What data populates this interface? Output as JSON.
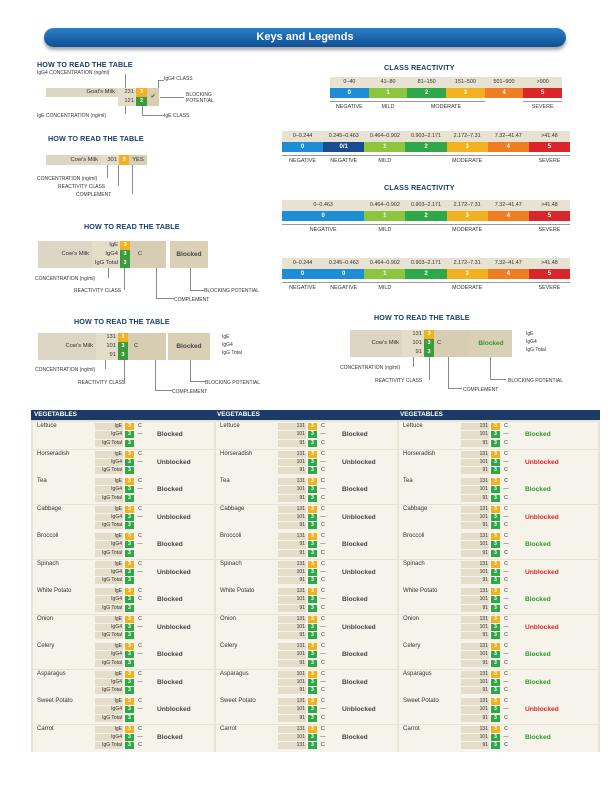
{
  "banner": "Keys and Legends",
  "how": "HOW TO READ THE TABLE",
  "cr_title": "CLASS REACTIVITY",
  "k1": {
    "food": "Goat's Milk",
    "v1": "231",
    "v2": "121",
    "c1": "3",
    "c2": "2",
    "check": "✔",
    "ann_ig4conc": "IgG4 CONCENTRATION (ng/ml)",
    "ann_ig4class": "IgG4 CLASS",
    "ann_block": "BLOCKING\nPOTENTIAL",
    "ann_igeconc": "IgE CONCENTRATION (ng/ml)",
    "ann_igeclass": "IgE CLASS"
  },
  "k2": {
    "food": "Cow's Milk",
    "v": "301",
    "c": "3",
    "comp": "YES",
    "a1": "CONCENTRATION (ng/ml)",
    "a2": "REACTIVITY CLASS",
    "a3": "COMPLEMENT"
  },
  "k3": {
    "food": "Cow's Milk",
    "l1": "IgE",
    "l2": "IgG4",
    "l3": "IgG Total",
    "c": "3",
    "comp": "C",
    "block": "Blocked",
    "a1": "CONCENTRATION (ng/ml)",
    "a2": "REACTIVITY CLASS",
    "a3": "COMPLEMENT",
    "a4": "BLOCKING POTENTIAL"
  },
  "k4": {
    "food": "Cow's Milk",
    "v1": "131",
    "v2": "101",
    "v3": "91",
    "c": "3",
    "comp": "C",
    "block": "Blocked",
    "l1": "IgE",
    "l2": "IgG4",
    "l3": "IgG Total",
    "a1": "CONCENTRATION (ng/ml)",
    "a2": "REACTIVITY CLASS",
    "a3": "COMPLEMENT",
    "a4": "BLOCKING POTENTIAL"
  },
  "k5": {
    "food": "Cow's Milk",
    "v1": "131",
    "v2": "101",
    "v3": "91",
    "c": "3",
    "comp": "C",
    "block": "Blocked",
    "l1": "IgE",
    "l2": "IgG4",
    "l3": "IgG Total",
    "a1": "CONCENTRATION (ng/ml)",
    "a2": "REACTIVITY CLASS",
    "a3": "COMPLEMENT",
    "a4": "BLOCKING POTENTIAL"
  },
  "scale1": {
    "ranges": [
      "0–40",
      "41–80",
      "81–150",
      "151–500",
      "501–900",
      ">900"
    ],
    "classes": [
      "0",
      "1",
      "2",
      "3",
      "4",
      "5"
    ],
    "labels": [
      "NEGATIVE",
      "MILD",
      "MODERATE",
      "SEVERE"
    ]
  },
  "scale2": {
    "ranges": [
      "0–0.244",
      "0.245–0.463",
      "0.464–0.902",
      "0.903–2.171",
      "2.172–7.31",
      "7.32–41.47",
      ">41.48"
    ],
    "classes": [
      "0",
      "0/1",
      "1",
      "2",
      "3",
      "4",
      "5"
    ],
    "labels": [
      "NEGATIVE",
      "NEGATIVE",
      "MILD",
      "MODERATE",
      "SEVERE"
    ]
  },
  "scale3": {
    "ranges": [
      "0–0.463",
      "0.464–0.902",
      "0.903–2.171",
      "2.172–7.31",
      "7.32–41.47",
      ">41.48"
    ],
    "classes": [
      "0",
      "1",
      "2",
      "3",
      "4",
      "5"
    ],
    "labels": [
      "NEGATIVE",
      "MILD",
      "MODERATE",
      "SEVERE"
    ]
  },
  "scale4": {
    "ranges": [
      "0–0.244",
      "0.245–0.463",
      "0.464–0.902",
      "0.903–2.171",
      "2.172–7.31",
      "7.32–41.47",
      ">41.48"
    ],
    "classes": [
      "0",
      "0",
      "1",
      "2",
      "3",
      "4",
      "5"
    ],
    "labels": [
      "NEGATIVE",
      "NEGATIVE",
      "MILD",
      "MODERATE",
      "SEVERE"
    ]
  },
  "colors": {
    "c0": "#1e8ed4",
    "c01": "#1a4d8f",
    "c1": "#8cc63f",
    "c2": "#2fa84a",
    "c3": "#f2b11e",
    "c4": "#ef7d22",
    "c5": "#d8262a"
  },
  "panels": [
    {
      "title": "VEGETABLES",
      "mode": "labels",
      "rows": [
        {
          "name": "Lettuce",
          "comp": [
            "C",
            "—",
            ""
          ],
          "status": "Blocked"
        },
        {
          "name": "Horseradish",
          "comp": [
            "C",
            "—",
            ""
          ],
          "status": "Unblocked"
        },
        {
          "name": "Tea",
          "comp": [
            "C",
            "—",
            ""
          ],
          "status": "Blocked"
        },
        {
          "name": "Cabbage",
          "comp": [
            "C",
            "—",
            ""
          ],
          "status": "Unblocked"
        },
        {
          "name": "Broccoli",
          "comp": [
            "C",
            "—",
            ""
          ],
          "status": "Blocked"
        },
        {
          "name": "Spinach",
          "comp": [
            "C",
            "—",
            ""
          ],
          "status": "Unblocked"
        },
        {
          "name": "White Potato",
          "comp": [
            "C",
            "C",
            ""
          ],
          "status": "Blocked"
        },
        {
          "name": "Onion",
          "comp": [
            "C",
            "—",
            ""
          ],
          "status": "Unblocked"
        },
        {
          "name": "Celery",
          "comp": [
            "C",
            "—",
            ""
          ],
          "status": "Blocked"
        },
        {
          "name": "Asparagus",
          "comp": [
            "C",
            "—",
            ""
          ],
          "status": "Blocked"
        },
        {
          "name": "Sweet Potato",
          "comp": [
            "C",
            "—",
            ""
          ],
          "status": "Unblocked"
        },
        {
          "name": "Carrot",
          "comp": [
            "C",
            "—",
            "C"
          ],
          "status": "Blocked"
        }
      ]
    },
    {
      "title": "VEGETABLES",
      "mode": "numbers",
      "rows": [
        {
          "name": "Lettuce",
          "vals": [
            "131",
            "101",
            "91"
          ],
          "comp": [
            "C",
            "—",
            "C"
          ],
          "status": "Blocked"
        },
        {
          "name": "Horseradish",
          "vals": [
            "131",
            "101",
            "91"
          ],
          "comp": [
            "C",
            "—",
            "C"
          ],
          "status": "Unblocked"
        },
        {
          "name": "Tea",
          "vals": [
            "131",
            "101",
            "91"
          ],
          "comp": [
            "C",
            "—",
            "C"
          ],
          "status": "Blocked"
        },
        {
          "name": "Cabbage",
          "vals": [
            "131",
            "101",
            "91"
          ],
          "comp": [
            "C",
            "—",
            "C"
          ],
          "status": "Unblocked"
        },
        {
          "name": "Broccoli",
          "vals": [
            "131",
            "91",
            "91"
          ],
          "comp": [
            "C",
            "—",
            "C"
          ],
          "status": "Blocked"
        },
        {
          "name": "Spinach",
          "vals": [
            "131",
            "101",
            "91"
          ],
          "comp": [
            "C",
            "—",
            "C"
          ],
          "status": "Unblocked"
        },
        {
          "name": "White Potato",
          "vals": [
            "131",
            "101",
            "91"
          ],
          "comp": [
            "C",
            "—",
            "C"
          ],
          "status": "Blocked"
        },
        {
          "name": "Onion",
          "vals": [
            "131",
            "101",
            "91"
          ],
          "comp": [
            "C",
            "—",
            "C"
          ],
          "status": "Unblocked"
        },
        {
          "name": "Celery",
          "vals": [
            "131",
            "101",
            "91"
          ],
          "comp": [
            "C",
            "—",
            "C"
          ],
          "status": "Blocked"
        },
        {
          "name": "Asparagus",
          "vals": [
            "101",
            "101",
            "91"
          ],
          "comp": [
            "C",
            "—",
            "C"
          ],
          "status": "Blocked"
        },
        {
          "name": "Sweet Potato",
          "vals": [
            "131",
            "101",
            "91"
          ],
          "comp": [
            "C",
            "—",
            "C"
          ],
          "status": "Unblocked"
        },
        {
          "name": "Carrot",
          "vals": [
            "131",
            "101",
            "131"
          ],
          "comp": [
            "C",
            "—",
            "C"
          ],
          "status": "Blocked"
        }
      ]
    },
    {
      "title": "VEGETABLES",
      "mode": "numbers",
      "rows": [
        {
          "name": "Lettuce",
          "vals": [
            "131",
            "101",
            "91"
          ],
          "comp": [
            "C",
            "—",
            "C"
          ],
          "status": "Blocked",
          "color": "g"
        },
        {
          "name": "Horseradish",
          "vals": [
            "131",
            "101",
            "91"
          ],
          "comp": [
            "C",
            "—",
            "C"
          ],
          "status": "Unblocked",
          "color": "r"
        },
        {
          "name": "Tea",
          "vals": [
            "131",
            "101",
            "91"
          ],
          "comp": [
            "C",
            "—",
            "C"
          ],
          "status": "Blocked",
          "color": "g"
        },
        {
          "name": "Cabbage",
          "vals": [
            "131",
            "101",
            "91"
          ],
          "comp": [
            "C",
            "—",
            "C"
          ],
          "status": "Unblocked",
          "color": "r"
        },
        {
          "name": "Broccoli",
          "vals": [
            "131",
            "101",
            "91"
          ],
          "comp": [
            "C",
            "—",
            "C"
          ],
          "status": "Blocked",
          "color": "g"
        },
        {
          "name": "Spinach",
          "vals": [
            "131",
            "101",
            "91"
          ],
          "comp": [
            "C",
            "—",
            "C"
          ],
          "status": "Unblocked",
          "color": "r"
        },
        {
          "name": "White Potato",
          "vals": [
            "131",
            "101",
            "91"
          ],
          "comp": [
            "C",
            "—",
            "C"
          ],
          "status": "Blocked",
          "color": "g"
        },
        {
          "name": "Onion",
          "vals": [
            "131",
            "101",
            "91"
          ],
          "comp": [
            "C",
            "—",
            "C"
          ],
          "status": "Unblocked",
          "color": "r"
        },
        {
          "name": "Celery",
          "vals": [
            "131",
            "101",
            "91"
          ],
          "comp": [
            "C",
            "—",
            "C"
          ],
          "status": "Blocked",
          "color": "g"
        },
        {
          "name": "Asparagus",
          "vals": [
            "131",
            "101",
            "91"
          ],
          "comp": [
            "C",
            "—",
            "C"
          ],
          "status": "Blocked",
          "color": "g"
        },
        {
          "name": "Sweet Potato",
          "vals": [
            "131",
            "101",
            "91"
          ],
          "comp": [
            "C",
            "—",
            "C"
          ],
          "status": "Unblocked",
          "color": "r"
        },
        {
          "name": "Carrot",
          "vals": [
            "131",
            "101",
            "91"
          ],
          "comp": [
            "C",
            "—",
            "C"
          ],
          "status": "Blocked",
          "color": "g"
        }
      ]
    }
  ]
}
